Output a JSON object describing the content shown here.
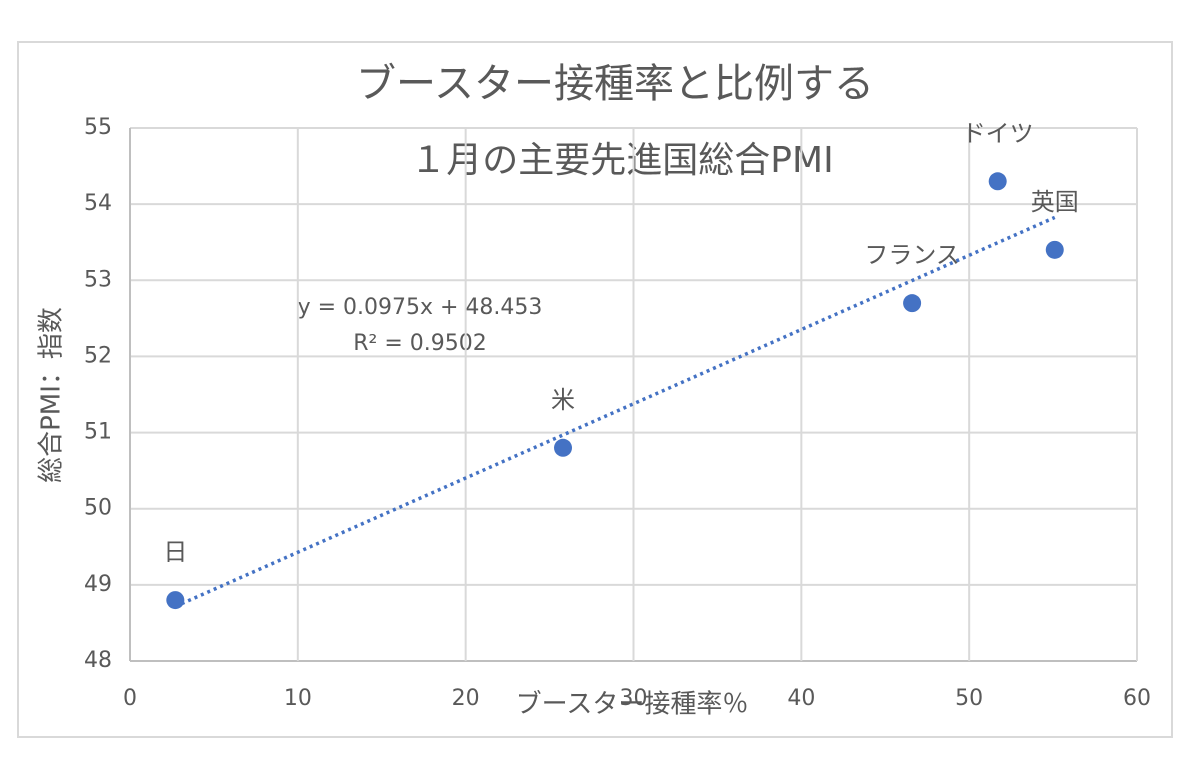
{
  "chart_data": {
    "type": "scatter",
    "title": "ブースター接種率と比例する",
    "subtitle": "１月の主要先進国総合PMI",
    "x_label": "ブースター接種率％",
    "y_label": "総合PMI：指数",
    "series": [
      {
        "color": "#4472c4",
        "x": [
          2.7,
          25.8,
          46.6,
          51.7,
          55.1
        ],
        "values": [
          48.8,
          50.8,
          52.7,
          54.3,
          53.4
        ],
        "labels": [
          "日",
          "米",
          "フランス",
          "ドイツ",
          "英国"
        ]
      }
    ],
    "trendline": {
      "slope": 0.0975,
      "intercept": 48.453,
      "equation": "y = 0.0975x + 48.453",
      "r_squared_label": "R² = 0.9502"
    },
    "xlim": [
      0,
      60
    ],
    "xticks": [
      0,
      10,
      20,
      30,
      40,
      50,
      60
    ],
    "ylim": [
      48,
      55
    ],
    "yticks": [
      48,
      49,
      50,
      51,
      52,
      53,
      54,
      55
    ],
    "grid": true
  }
}
